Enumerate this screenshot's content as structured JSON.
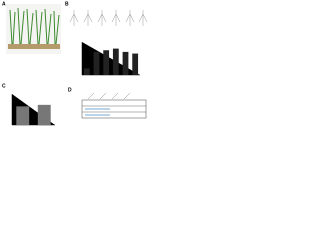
{
  "panels": [
    {
      "label": "A"
    },
    {
      "label": "B"
    },
    {
      "label": "C"
    },
    {
      "label": "D"
    }
  ],
  "chart_data": [
    {
      "type": "bar",
      "values": [
        2,
        7,
        7.5,
        8,
        7,
        6.5
      ],
      "color": "#222222",
      "ylim": [
        0,
        10
      ]
    },
    {
      "type": "bar",
      "values": [
        6,
        6.5
      ],
      "color": "#777777",
      "ylim": [
        0,
        10
      ]
    }
  ]
}
